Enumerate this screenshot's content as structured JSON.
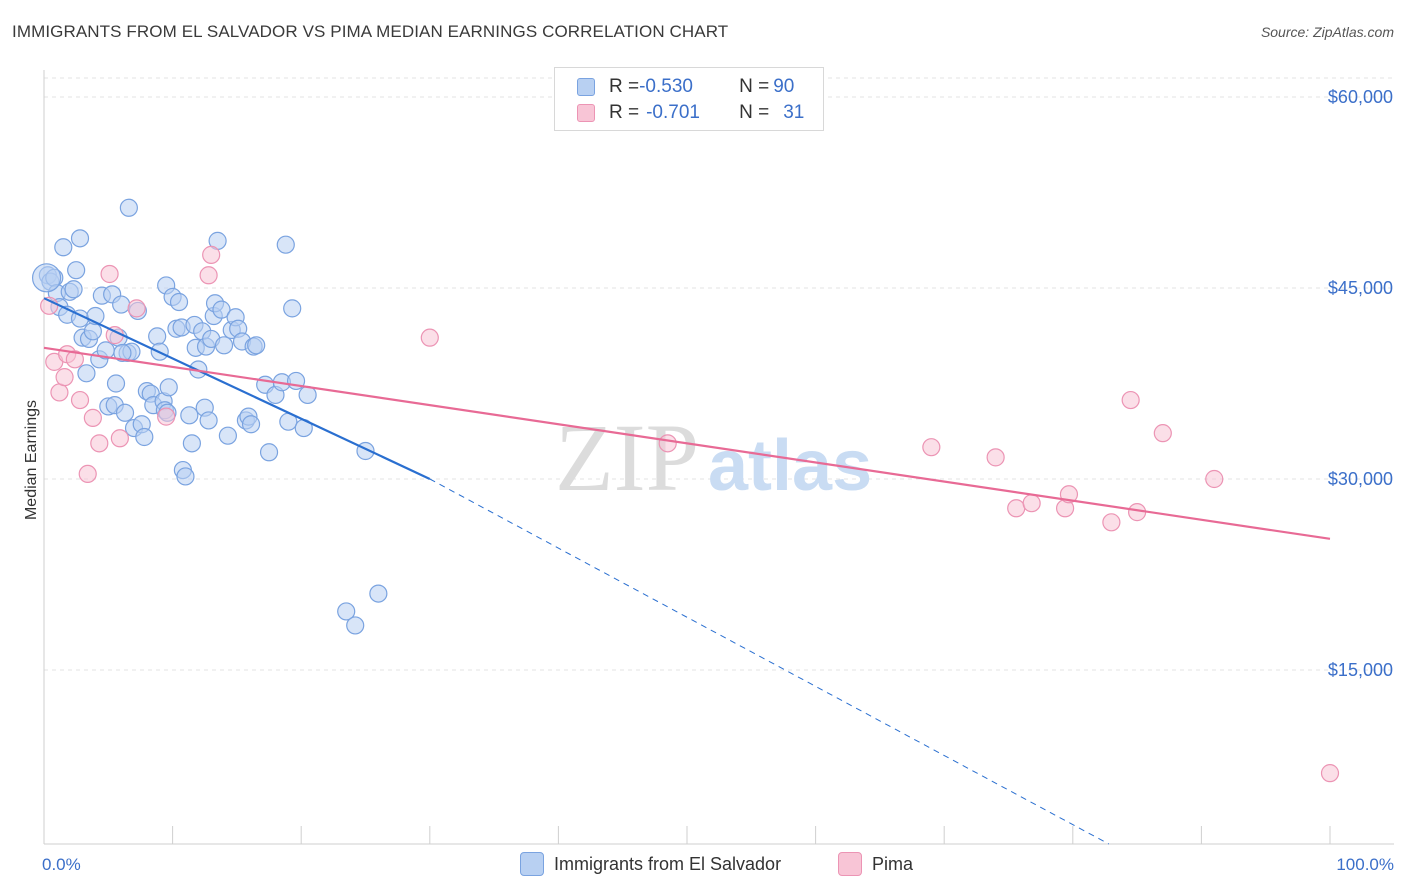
{
  "title": "IMMIGRANTS FROM EL SALVADOR VS PIMA MEDIAN EARNINGS CORRELATION CHART",
  "source": "Source: ZipAtlas.com",
  "watermark": {
    "zip": "ZIP",
    "atlas": "atlas"
  },
  "colors": {
    "blue_fill": "#b8d0f2",
    "blue_stroke": "#7aa3e0",
    "blue_line": "#2a6fd0",
    "pink_fill": "#f8c5d6",
    "pink_stroke": "#ec94b4",
    "pink_line": "#e86a95",
    "grid": "#e3e3e3",
    "tick_text": "#3b6fc9"
  },
  "legend": {
    "rows": [
      {
        "r_label": "R = ",
        "r_value": "-0.530",
        "n_label": "N = ",
        "n_value": "90"
      },
      {
        "r_label": "R = ",
        "r_value": "-0.701",
        "n_label": "N = ",
        "n_value": "31"
      }
    ]
  },
  "bottom_legend": [
    {
      "label": "Immigrants from El Salvador"
    },
    {
      "label": "Pima"
    }
  ],
  "chart_data": {
    "type": "scatter",
    "title": "IMMIGRANTS FROM EL SALVADOR VS PIMA MEDIAN EARNINGS CORRELATION CHART",
    "xlabel": "",
    "ylabel": "Median Earnings",
    "xlim": [
      0,
      100
    ],
    "ylim": [
      0,
      63000
    ],
    "x_tick_labels": [
      "0.0%",
      "100.0%"
    ],
    "y_ticks": [
      {
        "value": 15000,
        "label": "$15,000"
      },
      {
        "value": 30000,
        "label": "$30,000"
      },
      {
        "value": 45000,
        "label": "$45,000"
      },
      {
        "value": 60000,
        "label": "$60,000"
      }
    ],
    "series": [
      {
        "name": "Immigrants from El Salvador",
        "color": "blue",
        "r": -0.53,
        "n": 90,
        "trend": {
          "x0": 0,
          "y0": 44200,
          "x1": 30,
          "y1": 30000,
          "dash_x1": 100,
          "dash_y1": -8000
        },
        "points": [
          [
            0.3,
            46000
          ],
          [
            0.5,
            45500
          ],
          [
            0.8,
            45800
          ],
          [
            1.0,
            44600
          ],
          [
            1.2,
            43500
          ],
          [
            1.5,
            48200
          ],
          [
            1.8,
            42900
          ],
          [
            2.0,
            44700
          ],
          [
            2.3,
            44900
          ],
          [
            2.5,
            46400
          ],
          [
            2.8,
            42600
          ],
          [
            3.0,
            41100
          ],
          [
            3.3,
            38300
          ],
          [
            2.8,
            48900
          ],
          [
            3.5,
            41000
          ],
          [
            3.8,
            41600
          ],
          [
            4.0,
            42800
          ],
          [
            4.3,
            39400
          ],
          [
            4.5,
            44400
          ],
          [
            4.8,
            40100
          ],
          [
            5.0,
            35700
          ],
          [
            5.3,
            44500
          ],
          [
            5.5,
            35800
          ],
          [
            5.8,
            41100
          ],
          [
            5.6,
            37500
          ],
          [
            6.0,
            43700
          ],
          [
            6.3,
            35200
          ],
          [
            6.5,
            39900
          ],
          [
            6.6,
            51300
          ],
          [
            6.8,
            40000
          ],
          [
            7.0,
            34000
          ],
          [
            7.3,
            43200
          ],
          [
            7.6,
            34300
          ],
          [
            7.8,
            33300
          ],
          [
            8.0,
            36900
          ],
          [
            8.3,
            36700
          ],
          [
            8.5,
            35800
          ],
          [
            8.8,
            41200
          ],
          [
            9.0,
            40000
          ],
          [
            9.3,
            36100
          ],
          [
            9.4,
            35400
          ],
          [
            9.6,
            35200
          ],
          [
            9.7,
            37200
          ],
          [
            9.5,
            45200
          ],
          [
            10.0,
            44300
          ],
          [
            10.3,
            41800
          ],
          [
            10.5,
            43900
          ],
          [
            10.7,
            41900
          ],
          [
            10.8,
            30700
          ],
          [
            11.0,
            30200
          ],
          [
            11.3,
            35000
          ],
          [
            11.5,
            32800
          ],
          [
            11.7,
            42100
          ],
          [
            11.8,
            40300
          ],
          [
            12.0,
            38600
          ],
          [
            12.3,
            41600
          ],
          [
            12.5,
            35600
          ],
          [
            12.6,
            40400
          ],
          [
            12.8,
            34600
          ],
          [
            13.0,
            41000
          ],
          [
            13.2,
            42800
          ],
          [
            13.3,
            43800
          ],
          [
            13.5,
            48700
          ],
          [
            13.8,
            43300
          ],
          [
            14.0,
            40500
          ],
          [
            14.3,
            33400
          ],
          [
            14.6,
            41700
          ],
          [
            14.9,
            42700
          ],
          [
            15.1,
            41800
          ],
          [
            15.4,
            40800
          ],
          [
            15.7,
            34600
          ],
          [
            15.9,
            34900
          ],
          [
            16.1,
            34300
          ],
          [
            16.3,
            40400
          ],
          [
            16.5,
            40500
          ],
          [
            17.2,
            37400
          ],
          [
            17.5,
            32100
          ],
          [
            18.0,
            36600
          ],
          [
            18.5,
            37600
          ],
          [
            18.8,
            48400
          ],
          [
            19.0,
            34500
          ],
          [
            19.3,
            43400
          ],
          [
            19.6,
            37700
          ],
          [
            20.2,
            34000
          ],
          [
            20.5,
            36600
          ],
          [
            25.0,
            32200
          ],
          [
            23.5,
            19600
          ],
          [
            24.2,
            18500
          ],
          [
            26.0,
            21000
          ],
          [
            6.1,
            39900
          ]
        ]
      },
      {
        "name": "Pima",
        "color": "pink",
        "r": -0.701,
        "n": 31,
        "trend": {
          "x0": 0,
          "y0": 40300,
          "x1": 100,
          "y1": 25300
        },
        "points": [
          [
            0.4,
            43600
          ],
          [
            0.8,
            39200
          ],
          [
            1.2,
            36800
          ],
          [
            1.6,
            38000
          ],
          [
            1.8,
            39800
          ],
          [
            2.4,
            39400
          ],
          [
            2.8,
            36200
          ],
          [
            3.4,
            30400
          ],
          [
            3.8,
            34800
          ],
          [
            4.3,
            32800
          ],
          [
            5.1,
            46100
          ],
          [
            5.5,
            41300
          ],
          [
            5.9,
            33200
          ],
          [
            7.2,
            43400
          ],
          [
            9.5,
            34900
          ],
          [
            12.8,
            46000
          ],
          [
            13.0,
            47600
          ],
          [
            30.0,
            41100
          ],
          [
            48.5,
            32800
          ],
          [
            69.0,
            32500
          ],
          [
            74.0,
            31700
          ],
          [
            75.6,
            27700
          ],
          [
            76.8,
            28100
          ],
          [
            79.4,
            27700
          ],
          [
            79.7,
            28800
          ],
          [
            83.0,
            26600
          ],
          [
            84.5,
            36200
          ],
          [
            85.0,
            27400
          ],
          [
            87.0,
            33600
          ],
          [
            91.0,
            30000
          ],
          [
            100.0,
            6900
          ]
        ]
      }
    ]
  }
}
